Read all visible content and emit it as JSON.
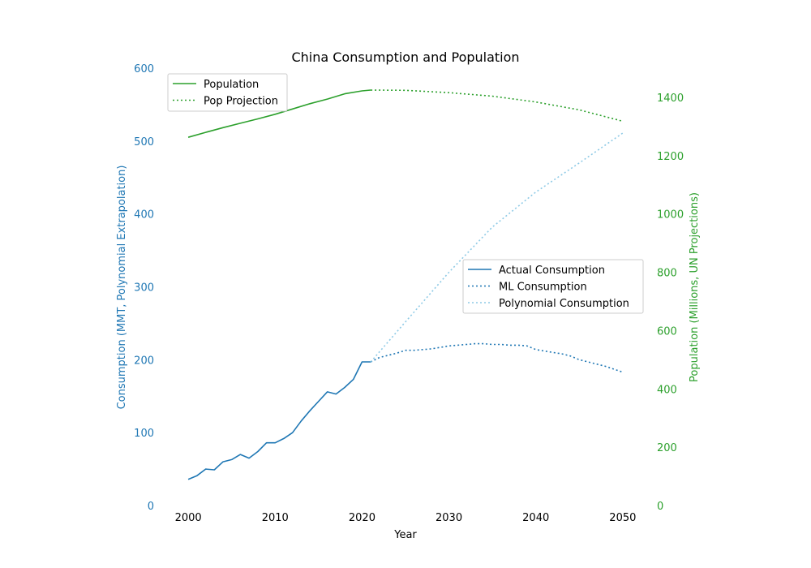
{
  "chart_data": {
    "type": "line",
    "title": "China Consumption and Population",
    "xlabel": "Year",
    "ylabel_left": "Consumption (MMT, Polynomial Extrapolation)",
    "ylabel_right": "Population (Millions, UN Projections)",
    "xlim": [
      1997,
      2053
    ],
    "ylim_left": [
      0,
      600
    ],
    "ylim_right": [
      0,
      1500
    ],
    "x_ticks": [
      2000,
      2010,
      2020,
      2030,
      2040,
      2050
    ],
    "y_ticks_left": [
      0,
      100,
      200,
      300,
      400,
      500,
      600
    ],
    "y_ticks_right": [
      0,
      200,
      400,
      600,
      800,
      1000,
      1200,
      1400
    ],
    "colors": {
      "consumption_axis": "#1f77b4",
      "population_axis": "#2ca02c",
      "actual": "#1f77b4",
      "ml": "#1f77b4",
      "poly": "#8ecae6",
      "population": "#2ca02c",
      "projection": "#2ca02c"
    },
    "legend_population": {
      "placement": "upper-left",
      "entries": [
        "Population",
        "Pop Projection"
      ]
    },
    "legend_consumption": {
      "placement": "center-right",
      "entries": [
        "Actual Consumption",
        "ML Consumption",
        "Polynomial Consumption"
      ]
    },
    "series": [
      {
        "name": "Actual Consumption",
        "axis": "left",
        "style": "solid",
        "x": [
          2000,
          2001,
          2002,
          2003,
          2004,
          2005,
          2006,
          2007,
          2008,
          2009,
          2010,
          2011,
          2012,
          2013,
          2014,
          2015,
          2016,
          2017,
          2018,
          2019,
          2020,
          2021
        ],
        "values": [
          36,
          41,
          50,
          49,
          60,
          63,
          70,
          65,
          74,
          86,
          86,
          92,
          100,
          116,
          130,
          143,
          156,
          153,
          162,
          173,
          197,
          197
        ]
      },
      {
        "name": "ML Consumption",
        "axis": "left",
        "style": "dotted",
        "x": [
          2021,
          2022,
          2023,
          2024,
          2025,
          2026,
          2027,
          2028,
          2029,
          2030,
          2031,
          2032,
          2033,
          2034,
          2035,
          2036,
          2037,
          2038,
          2039,
          2040,
          2041,
          2042,
          2043,
          2044,
          2045,
          2046,
          2047,
          2048,
          2049,
          2050
        ],
        "values": [
          197,
          203,
          206,
          209,
          213,
          213,
          214,
          215,
          217,
          219,
          220,
          221,
          222,
          222,
          221,
          221,
          220,
          220,
          219,
          214,
          212,
          210,
          208,
          205,
          200,
          197,
          194,
          191,
          187,
          183
        ]
      },
      {
        "name": "Polynomial Consumption",
        "axis": "left",
        "style": "dotted",
        "x": [
          2021,
          2025,
          2030,
          2035,
          2040,
          2045,
          2050
        ],
        "values": [
          197,
          252,
          320,
          382,
          430,
          470,
          511
        ]
      },
      {
        "name": "Population",
        "axis": "right",
        "style": "solid",
        "x": [
          2000,
          2002,
          2004,
          2006,
          2008,
          2010,
          2012,
          2014,
          2016,
          2018,
          2020,
          2021
        ],
        "values": [
          1263,
          1280,
          1296,
          1311,
          1326,
          1342,
          1360,
          1378,
          1394,
          1412,
          1422,
          1425
        ]
      },
      {
        "name": "Pop Projection",
        "axis": "right",
        "style": "dotted",
        "x": [
          2021,
          2025,
          2030,
          2035,
          2040,
          2045,
          2050
        ],
        "values": [
          1425,
          1424,
          1416,
          1404,
          1384,
          1357,
          1318
        ]
      }
    ]
  }
}
